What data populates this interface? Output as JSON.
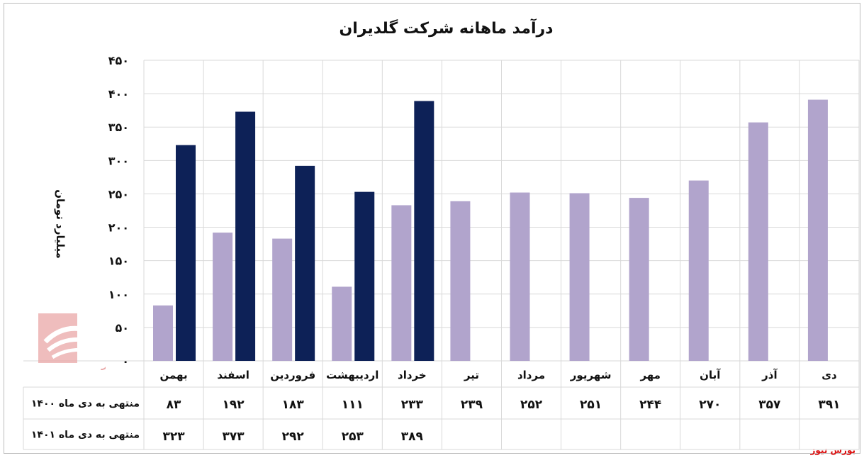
{
  "chart_data": {
    "type": "bar",
    "title": "درآمد ماهانه شرکت گلدیران",
    "ylabel": "میلیارد تومان",
    "ylim": [
      0,
      450
    ],
    "yticks": [
      "۰",
      "۵۰",
      "۱۰۰",
      "۱۵۰",
      "۲۰۰",
      "۲۵۰",
      "۳۰۰",
      "۳۵۰",
      "۴۰۰",
      "۴۵۰"
    ],
    "grid": true,
    "categories": [
      "بهمن",
      "اسفند",
      "فروردین",
      "اردیبهشت",
      "خرداد",
      "تیر",
      "مرداد",
      "شهریور",
      "مهر",
      "آبان",
      "آذر",
      "دی"
    ],
    "series": [
      {
        "name": "منتهی به دی ماه ۱۴۰۰",
        "color": "#b1a4cc",
        "values": [
          83,
          192,
          183,
          111,
          233,
          239,
          252,
          251,
          244,
          270,
          357,
          391
        ],
        "labels": [
          "۸۳",
          "۱۹۲",
          "۱۸۳",
          "۱۱۱",
          "۲۳۳",
          "۲۳۹",
          "۲۵۲",
          "۲۵۱",
          "۲۴۴",
          "۲۷۰",
          "۳۵۷",
          "۳۹۱"
        ]
      },
      {
        "name": "منتهی به دی ماه ۱۴۰۱",
        "color": "#0d2157",
        "values": [
          323,
          373,
          292,
          253,
          389,
          null,
          null,
          null,
          null,
          null,
          null,
          null
        ],
        "labels": [
          "۳۲۳",
          "۳۷۳",
          "۲۹۲",
          "۲۵۳",
          "۳۸۹",
          "",
          "",
          "",
          "",
          "",
          "",
          ""
        ]
      }
    ]
  },
  "watermark_text": "بورس نیوز",
  "source": "بورس نیوز"
}
